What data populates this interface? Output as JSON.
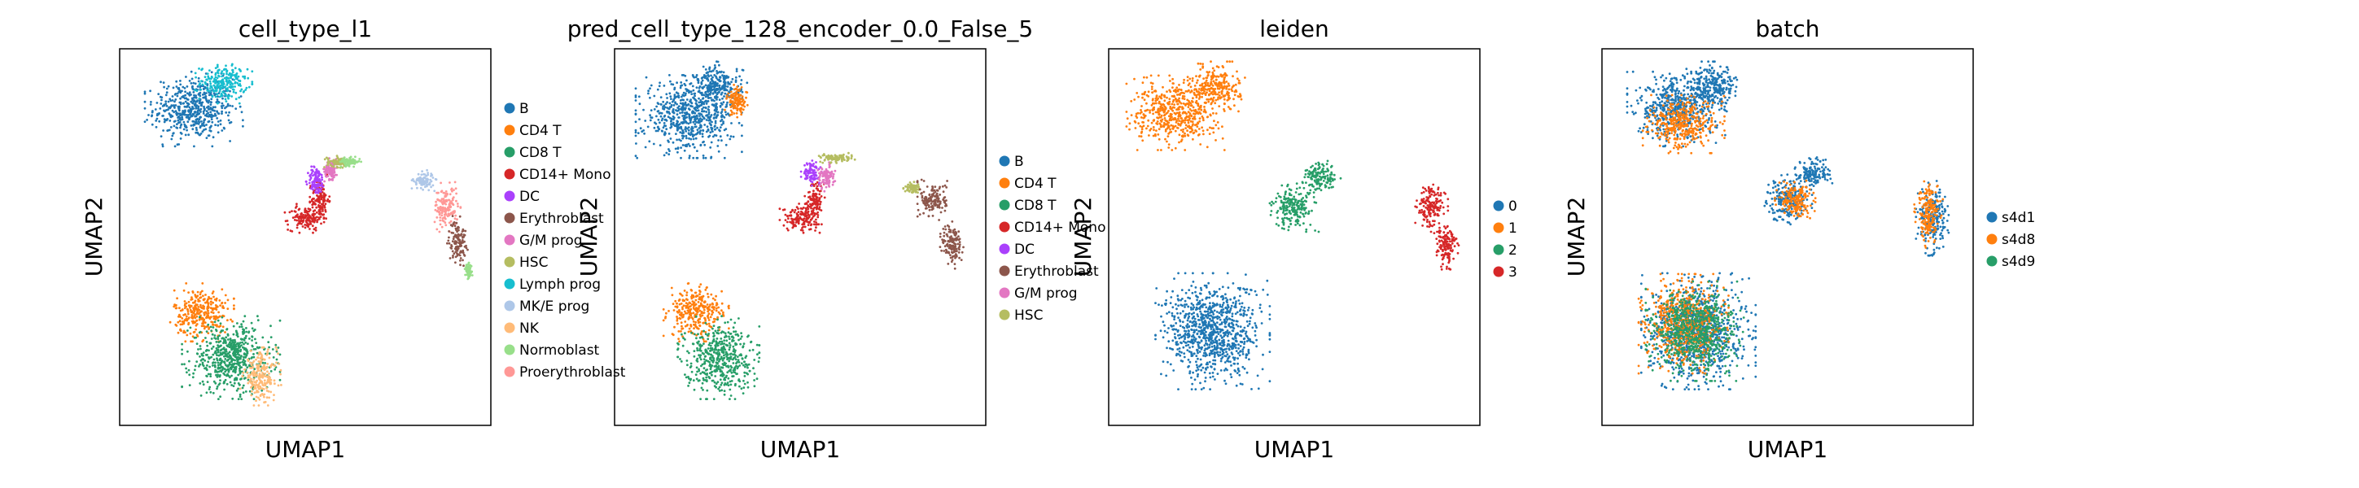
{
  "panels": [
    {
      "title": "cell_type_l1",
      "xlabel": "UMAP1",
      "ylabel": "UMAP2",
      "legend": [
        {
          "label": "B",
          "color": "#1f77b4"
        },
        {
          "label": "CD4 T",
          "color": "#ff7f0e"
        },
        {
          "label": "CD8 T",
          "color": "#279e68"
        },
        {
          "label": "CD14+ Mono",
          "color": "#d62728"
        },
        {
          "label": "DC",
          "color": "#aa40fc"
        },
        {
          "label": "Erythroblast",
          "color": "#8c564b"
        },
        {
          "label": "G/M prog",
          "color": "#e377c2"
        },
        {
          "label": "HSC",
          "color": "#b5bd61"
        },
        {
          "label": "Lymph prog",
          "color": "#17becf"
        },
        {
          "label": "MK/E prog",
          "color": "#aec7e8"
        },
        {
          "label": "NK",
          "color": "#ffbb78"
        },
        {
          "label": "Normoblast",
          "color": "#98df8a"
        },
        {
          "label": "Proerythroblast",
          "color": "#ff9896"
        }
      ]
    },
    {
      "title": "pred_cell_type_128_encoder_0.0_False_5",
      "xlabel": "UMAP1",
      "ylabel": "UMAP2",
      "legend": [
        {
          "label": "B",
          "color": "#1f77b4"
        },
        {
          "label": "CD4 T",
          "color": "#ff7f0e"
        },
        {
          "label": "CD8 T",
          "color": "#279e68"
        },
        {
          "label": "CD14+ Mono",
          "color": "#d62728"
        },
        {
          "label": "DC",
          "color": "#aa40fc"
        },
        {
          "label": "Erythroblast",
          "color": "#8c564b"
        },
        {
          "label": "G/M prog",
          "color": "#e377c2"
        },
        {
          "label": "HSC",
          "color": "#b5bd61"
        }
      ]
    },
    {
      "title": "leiden",
      "xlabel": "UMAP1",
      "ylabel": "UMAP2",
      "legend": [
        {
          "label": "0",
          "color": "#1f77b4"
        },
        {
          "label": "1",
          "color": "#ff7f0e"
        },
        {
          "label": "2",
          "color": "#279e68"
        },
        {
          "label": "3",
          "color": "#d62728"
        }
      ]
    },
    {
      "title": "batch",
      "xlabel": "UMAP1",
      "ylabel": "UMAP2",
      "legend": [
        {
          "label": "s4d1",
          "color": "#1f77b4"
        },
        {
          "label": "s4d8",
          "color": "#ff7f0e"
        },
        {
          "label": "s4d9",
          "color": "#279e68"
        }
      ]
    }
  ],
  "chart_data": [
    {
      "type": "scatter",
      "title": "cell_type_l1",
      "xlabel": "UMAP1",
      "ylabel": "UMAP2",
      "ticks_shown": false,
      "grid": false,
      "legend_placement": "right-outside",
      "series": [
        {
          "name": "B",
          "color": "#1f77b4",
          "clusters": [
            {
              "cx": 0.2,
              "cy": 0.84,
              "rx": 0.12,
              "ry": 0.09
            }
          ]
        },
        {
          "name": "Lymph prog",
          "color": "#17becf",
          "clusters": [
            {
              "cx": 0.28,
              "cy": 0.91,
              "rx": 0.07,
              "ry": 0.05
            }
          ]
        },
        {
          "name": "CD14+ Mono",
          "color": "#d62728",
          "clusters": [
            {
              "cx": 0.5,
              "cy": 0.55,
              "rx": 0.05,
              "ry": 0.035
            },
            {
              "cx": 0.54,
              "cy": 0.6,
              "rx": 0.025,
              "ry": 0.06
            }
          ]
        },
        {
          "name": "DC",
          "color": "#aa40fc",
          "clusters": [
            {
              "cx": 0.53,
              "cy": 0.65,
              "rx": 0.025,
              "ry": 0.04
            }
          ]
        },
        {
          "name": "G/M prog",
          "color": "#e377c2",
          "clusters": [
            {
              "cx": 0.57,
              "cy": 0.68,
              "rx": 0.02,
              "ry": 0.03
            }
          ]
        },
        {
          "name": "HSC",
          "color": "#b5bd61",
          "clusters": [
            {
              "cx": 0.59,
              "cy": 0.7,
              "rx": 0.035,
              "ry": 0.015
            }
          ]
        },
        {
          "name": "Normoblast",
          "color": "#98df8a",
          "clusters": [
            {
              "cx": 0.62,
              "cy": 0.7,
              "rx": 0.03,
              "ry": 0.012
            },
            {
              "cx": 0.94,
              "cy": 0.41,
              "rx": 0.01,
              "ry": 0.02
            }
          ]
        },
        {
          "name": "MK/E prog",
          "color": "#aec7e8",
          "clusters": [
            {
              "cx": 0.82,
              "cy": 0.65,
              "rx": 0.03,
              "ry": 0.025
            }
          ]
        },
        {
          "name": "Proerythroblast",
          "color": "#ff9896",
          "clusters": [
            {
              "cx": 0.88,
              "cy": 0.58,
              "rx": 0.035,
              "ry": 0.06
            }
          ]
        },
        {
          "name": "Erythroblast",
          "color": "#8c564b",
          "clusters": [
            {
              "cx": 0.91,
              "cy": 0.49,
              "rx": 0.025,
              "ry": 0.06
            }
          ]
        },
        {
          "name": "CD4 T",
          "color": "#ff7f0e",
          "clusters": [
            {
              "cx": 0.22,
              "cy": 0.3,
              "rx": 0.08,
              "ry": 0.07
            }
          ]
        },
        {
          "name": "CD8 T",
          "color": "#279e68",
          "clusters": [
            {
              "cx": 0.3,
              "cy": 0.18,
              "rx": 0.12,
              "ry": 0.1
            }
          ]
        },
        {
          "name": "NK",
          "color": "#ffbb78",
          "clusters": [
            {
              "cx": 0.38,
              "cy": 0.13,
              "rx": 0.05,
              "ry": 0.07
            }
          ]
        }
      ]
    },
    {
      "type": "scatter",
      "title": "pred_cell_type_128_encoder_0.0_False_5",
      "xlabel": "UMAP1",
      "ylabel": "UMAP2",
      "ticks_shown": false,
      "grid": false,
      "legend_placement": "right-outside",
      "series": [
        {
          "name": "B",
          "color": "#1f77b4",
          "clusters": [
            {
              "cx": 0.2,
              "cy": 0.82,
              "rx": 0.13,
              "ry": 0.1
            },
            {
              "cx": 0.28,
              "cy": 0.9,
              "rx": 0.07,
              "ry": 0.06
            }
          ]
        },
        {
          "name": "CD4 T",
          "color": "#ff7f0e",
          "clusters": [
            {
              "cx": 0.33,
              "cy": 0.86,
              "rx": 0.03,
              "ry": 0.04
            },
            {
              "cx": 0.22,
              "cy": 0.3,
              "rx": 0.08,
              "ry": 0.07
            }
          ]
        },
        {
          "name": "CD14+ Mono",
          "color": "#d62728",
          "clusters": [
            {
              "cx": 0.5,
              "cy": 0.55,
              "rx": 0.05,
              "ry": 0.035
            },
            {
              "cx": 0.54,
              "cy": 0.6,
              "rx": 0.025,
              "ry": 0.06
            }
          ]
        },
        {
          "name": "DC",
          "color": "#aa40fc",
          "clusters": [
            {
              "cx": 0.53,
              "cy": 0.67,
              "rx": 0.025,
              "ry": 0.03
            }
          ]
        },
        {
          "name": "G/M prog",
          "color": "#e377c2",
          "clusters": [
            {
              "cx": 0.57,
              "cy": 0.66,
              "rx": 0.025,
              "ry": 0.035
            }
          ]
        },
        {
          "name": "HSC",
          "color": "#b5bd61",
          "clusters": [
            {
              "cx": 0.6,
              "cy": 0.71,
              "rx": 0.05,
              "ry": 0.012
            },
            {
              "cx": 0.8,
              "cy": 0.63,
              "rx": 0.02,
              "ry": 0.015
            }
          ]
        },
        {
          "name": "Erythroblast",
          "color": "#8c564b",
          "clusters": [
            {
              "cx": 0.86,
              "cy": 0.6,
              "rx": 0.04,
              "ry": 0.05
            },
            {
              "cx": 0.91,
              "cy": 0.48,
              "rx": 0.03,
              "ry": 0.06
            }
          ]
        },
        {
          "name": "CD8 T",
          "color": "#279e68",
          "clusters": [
            {
              "cx": 0.28,
              "cy": 0.18,
              "rx": 0.1,
              "ry": 0.1
            }
          ]
        }
      ]
    },
    {
      "type": "scatter",
      "title": "leiden",
      "xlabel": "UMAP1",
      "ylabel": "UMAP2",
      "ticks_shown": false,
      "grid": false,
      "legend_placement": "right-outside",
      "series": [
        {
          "name": "0",
          "color": "#1f77b4",
          "clusters": [
            {
              "cx": 0.28,
              "cy": 0.25,
              "rx": 0.14,
              "ry": 0.14
            }
          ]
        },
        {
          "name": "1",
          "color": "#ff7f0e",
          "clusters": [
            {
              "cx": 0.18,
              "cy": 0.83,
              "rx": 0.12,
              "ry": 0.09
            },
            {
              "cx": 0.29,
              "cy": 0.9,
              "rx": 0.07,
              "ry": 0.06
            }
          ]
        },
        {
          "name": "2",
          "color": "#279e68",
          "clusters": [
            {
              "cx": 0.5,
              "cy": 0.58,
              "rx": 0.06,
              "ry": 0.06
            },
            {
              "cx": 0.57,
              "cy": 0.66,
              "rx": 0.05,
              "ry": 0.04
            }
          ]
        },
        {
          "name": "3",
          "color": "#d62728",
          "clusters": [
            {
              "cx": 0.87,
              "cy": 0.58,
              "rx": 0.04,
              "ry": 0.06
            },
            {
              "cx": 0.91,
              "cy": 0.48,
              "rx": 0.03,
              "ry": 0.06
            }
          ]
        }
      ]
    },
    {
      "type": "scatter",
      "title": "batch",
      "xlabel": "UMAP1",
      "ylabel": "UMAP2",
      "ticks_shown": false,
      "grid": false,
      "legend_placement": "right-outside",
      "series": [
        {
          "name": "s4d1",
          "color": "#1f77b4",
          "clusters": [
            {
              "cx": 0.2,
              "cy": 0.84,
              "rx": 0.12,
              "ry": 0.09
            },
            {
              "cx": 0.3,
              "cy": 0.9,
              "rx": 0.07,
              "ry": 0.06
            },
            {
              "cx": 0.5,
              "cy": 0.6,
              "rx": 0.06,
              "ry": 0.06
            },
            {
              "cx": 0.57,
              "cy": 0.67,
              "rx": 0.05,
              "ry": 0.04
            },
            {
              "cx": 0.89,
              "cy": 0.55,
              "rx": 0.04,
              "ry": 0.09
            },
            {
              "cx": 0.26,
              "cy": 0.25,
              "rx": 0.14,
              "ry": 0.14
            }
          ]
        },
        {
          "name": "s4d8",
          "color": "#ff7f0e",
          "clusters": [
            {
              "cx": 0.22,
              "cy": 0.8,
              "rx": 0.1,
              "ry": 0.07
            },
            {
              "cx": 0.52,
              "cy": 0.6,
              "rx": 0.05,
              "ry": 0.05
            },
            {
              "cx": 0.88,
              "cy": 0.56,
              "rx": 0.035,
              "ry": 0.08
            },
            {
              "cx": 0.22,
              "cy": 0.27,
              "rx": 0.11,
              "ry": 0.12
            }
          ]
        },
        {
          "name": "s4d9",
          "color": "#279e68",
          "clusters": [
            {
              "cx": 0.25,
              "cy": 0.25,
              "rx": 0.12,
              "ry": 0.12
            }
          ]
        }
      ]
    }
  ]
}
